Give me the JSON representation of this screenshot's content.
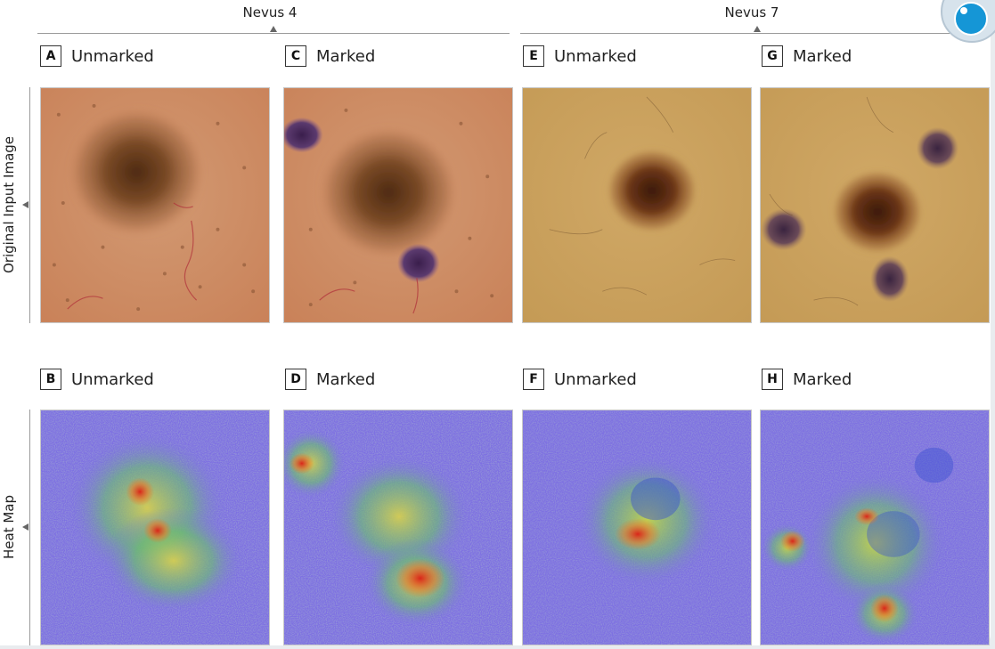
{
  "groups": [
    {
      "title": "Nevus 4"
    },
    {
      "title": "Nevus 7"
    }
  ],
  "rows": [
    {
      "title": "Original Input Image"
    },
    {
      "title": "Heat Map"
    }
  ],
  "panels": [
    {
      "letter": "A",
      "caption": "Unmarked"
    },
    {
      "letter": "C",
      "caption": "Marked"
    },
    {
      "letter": "E",
      "caption": "Unmarked"
    },
    {
      "letter": "G",
      "caption": "Marked"
    },
    {
      "letter": "B",
      "caption": "Unmarked"
    },
    {
      "letter": "D",
      "caption": "Marked"
    },
    {
      "letter": "F",
      "caption": "Unmarked"
    },
    {
      "letter": "H",
      "caption": "Marked"
    }
  ],
  "colors": {
    "skin_nevus4": "#c98b63",
    "skin_nevus7": "#c9a15f",
    "nevus_brown": "#5a3216",
    "ink_marking": "#4b2a5c",
    "heatmap_base": "#7d6fe2",
    "heatmap_hot": "#d9261a",
    "heatmap_mid": "#c8d842"
  },
  "logo": {
    "icon": "journal-logo-icon"
  }
}
